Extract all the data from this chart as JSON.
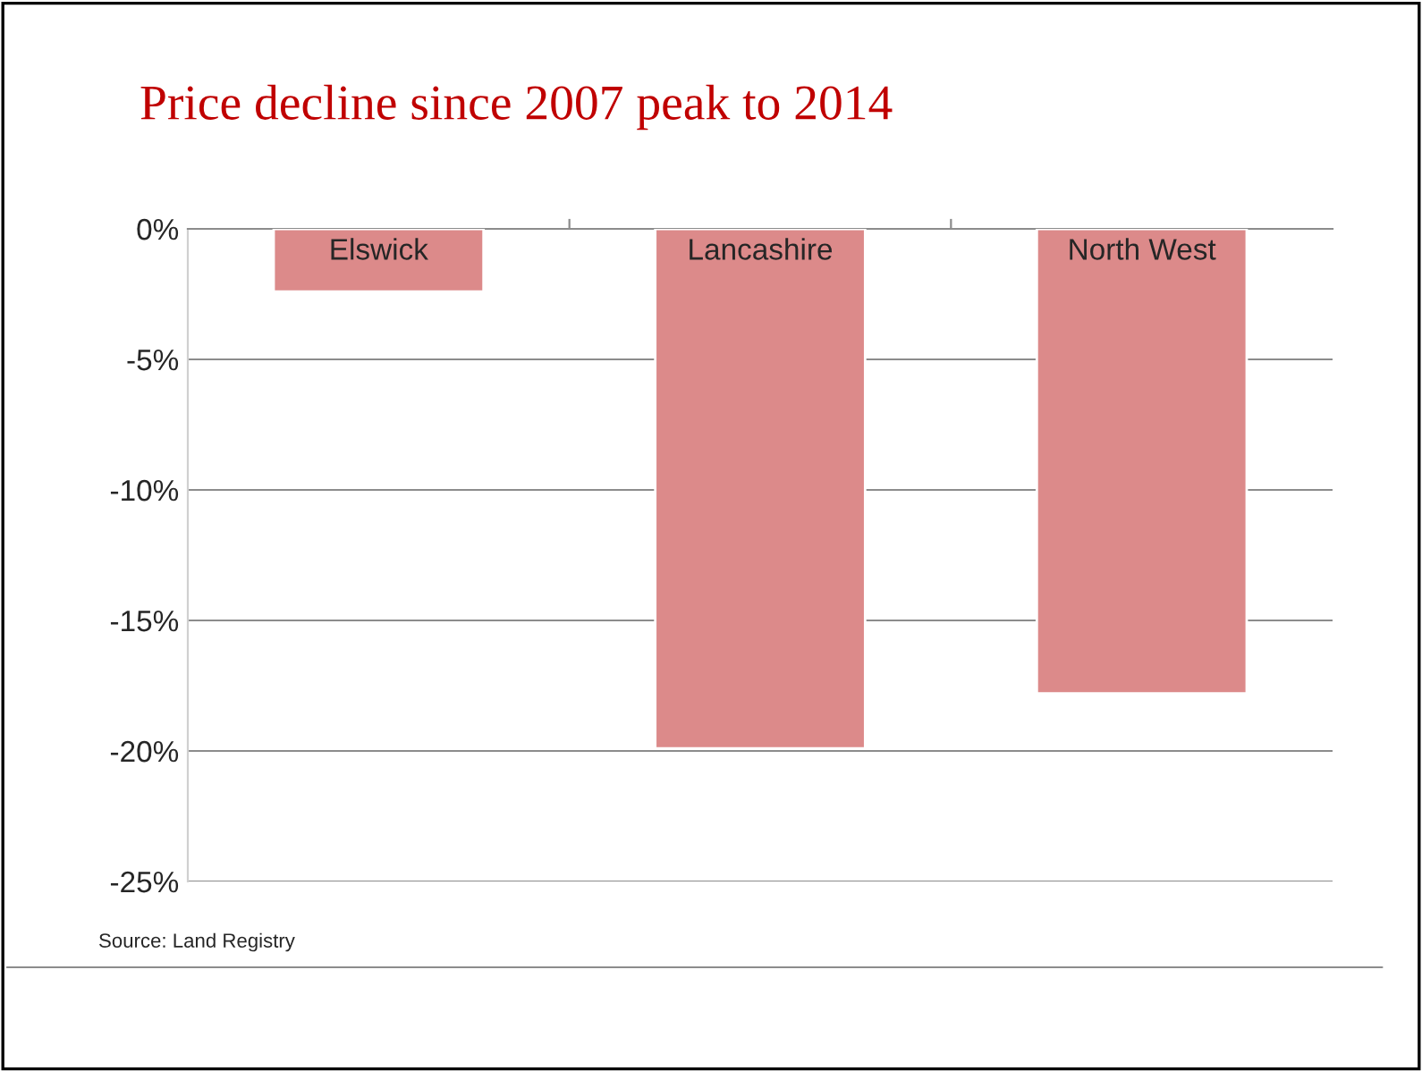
{
  "chart_data": {
    "type": "bar",
    "title": "Price decline since 2007 peak to 2014",
    "categories": [
      "Elswick",
      "Lancashire",
      "North West"
    ],
    "values": [
      -2.4,
      -19.9,
      -17.8
    ],
    "color": "#dc8a8a",
    "ylim": [
      -25,
      0
    ],
    "yticks": [
      {
        "value": 0,
        "label": "0%"
      },
      {
        "value": -5,
        "label": "-5%"
      },
      {
        "value": -10,
        "label": "-10%"
      },
      {
        "value": -15,
        "label": "-15%"
      },
      {
        "value": -20,
        "label": "-20%"
      },
      {
        "value": -25,
        "label": "-25%"
      }
    ],
    "grid": "y",
    "annotations": [
      "Source: Land Registry"
    ]
  }
}
